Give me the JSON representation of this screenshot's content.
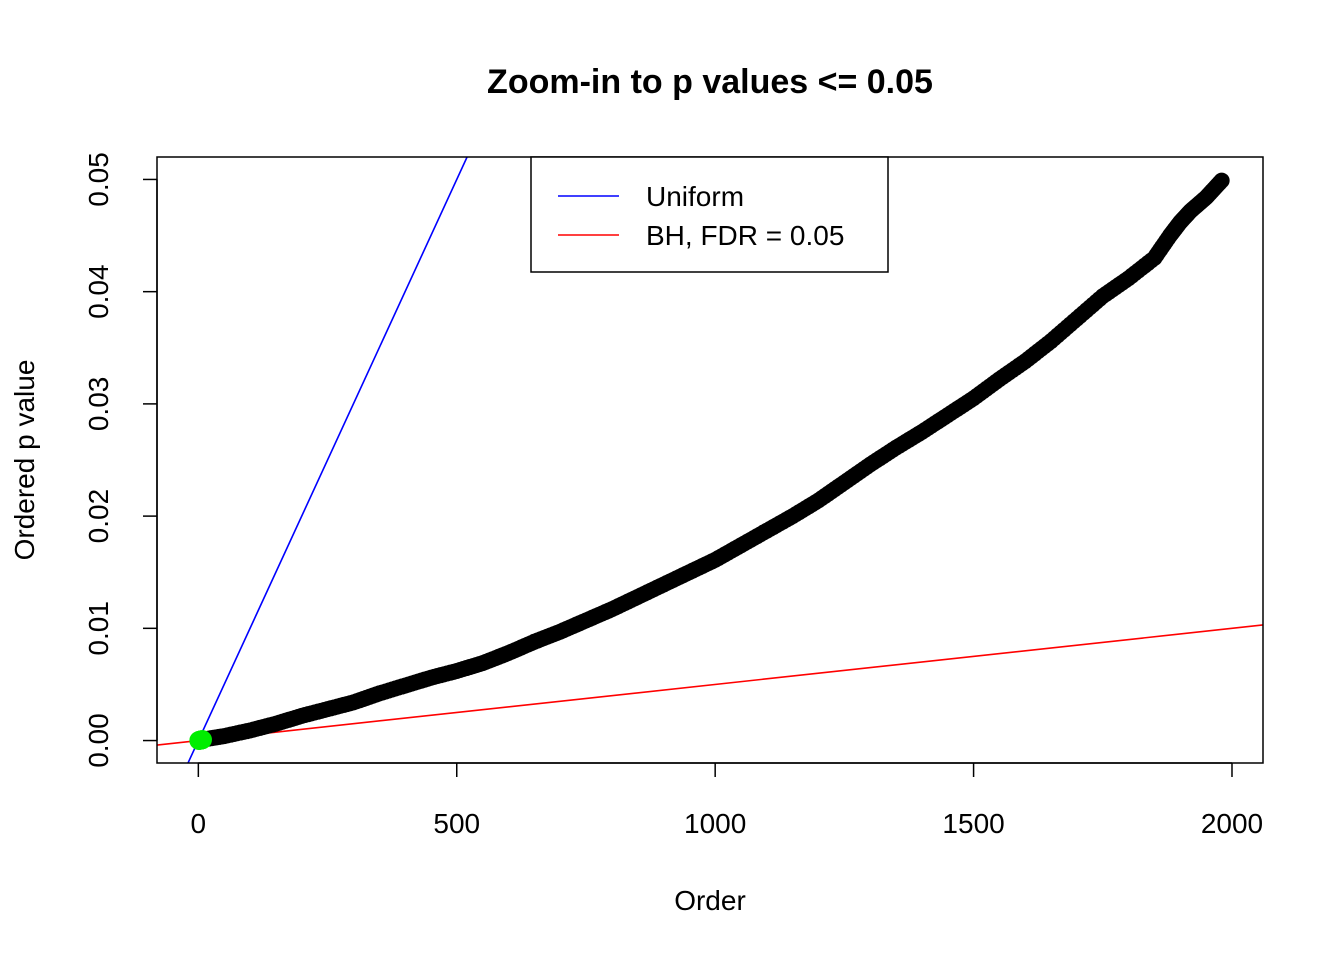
{
  "chart_data": {
    "type": "scatter",
    "title": "Zoom-in to p values <= 0.05",
    "xlabel": "Order",
    "ylabel": "Ordered p value",
    "xlim": [
      -80,
      2060
    ],
    "ylim": [
      -0.002,
      0.052
    ],
    "x_ticks": [
      0,
      500,
      1000,
      1500,
      2000
    ],
    "x_tick_labels": [
      "0",
      "500",
      "1000",
      "1500",
      "2000"
    ],
    "y_ticks": [
      0.0,
      0.01,
      0.02,
      0.03,
      0.04,
      0.05
    ],
    "y_tick_labels": [
      "0.00",
      "0.01",
      "0.02",
      "0.03",
      "0.04",
      "0.05"
    ],
    "grid": false,
    "legend_position": "top-center",
    "legend": [
      {
        "label": "Uniform",
        "color": "#0000ff"
      },
      {
        "label": "BH, FDR = 0.05",
        "color": "#ff0000"
      }
    ],
    "series": [
      {
        "kind": "points",
        "color": "#000000",
        "x": [
          10,
          50,
          100,
          150,
          200,
          250,
          300,
          350,
          400,
          450,
          500,
          550,
          600,
          650,
          700,
          750,
          800,
          850,
          900,
          950,
          1000,
          1050,
          1100,
          1150,
          1200,
          1250,
          1300,
          1350,
          1400,
          1450,
          1500,
          1550,
          1600,
          1650,
          1700,
          1750,
          1800,
          1850,
          1880,
          1900,
          1920,
          1950,
          1980
        ],
        "y": [
          0.0001,
          0.0004,
          0.0009,
          0.0015,
          0.0022,
          0.0028,
          0.0034,
          0.0042,
          0.0049,
          0.0056,
          0.0062,
          0.0069,
          0.0078,
          0.0088,
          0.0097,
          0.0107,
          0.0117,
          0.0128,
          0.0139,
          0.015,
          0.0161,
          0.0174,
          0.0187,
          0.02,
          0.0214,
          0.023,
          0.0246,
          0.0261,
          0.0275,
          0.029,
          0.0305,
          0.0322,
          0.0338,
          0.0356,
          0.0376,
          0.0396,
          0.0412,
          0.043,
          0.045,
          0.0462,
          0.0472,
          0.0484,
          0.0499
        ]
      },
      {
        "kind": "highlight-points",
        "color": "#00ee00",
        "x": [
          1,
          2,
          3,
          4,
          5,
          6,
          7,
          8
        ],
        "y": [
          1e-05,
          2e-05,
          3e-05,
          4e-05,
          5e-05,
          6e-05,
          7e-05,
          8e-05
        ]
      },
      {
        "kind": "line",
        "name": "Uniform",
        "color": "#0000ff",
        "slope": 0.0001,
        "intercept": 0
      },
      {
        "kind": "line",
        "name": "BH, FDR = 0.05",
        "color": "#ff0000",
        "slope": 5e-06,
        "intercept": 0
      }
    ]
  }
}
